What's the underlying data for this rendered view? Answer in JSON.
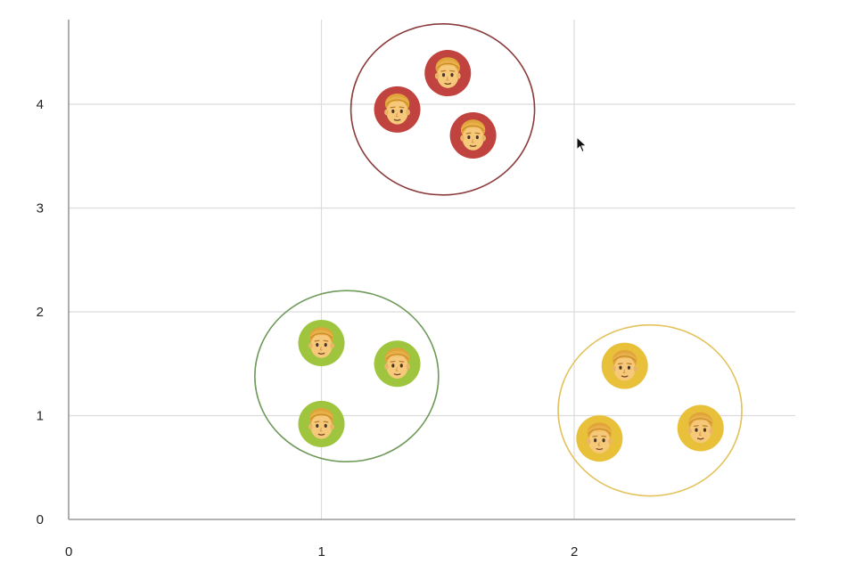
{
  "chart_data": {
    "type": "scatter",
    "title": "",
    "xlabel": "",
    "ylabel": "",
    "xlim": [
      0,
      2.9
    ],
    "ylim": [
      0,
      4.6
    ],
    "x_ticks": [
      "0",
      "1",
      "2"
    ],
    "y_ticks": [
      "0",
      "1",
      "2",
      "3",
      "4"
    ],
    "grid": true,
    "marker": "person-face-icon",
    "clusters": [
      {
        "color": "#c0433f",
        "ring_color": "#8a3a3a",
        "center": [
          1.48,
          3.95
        ],
        "radius": 0.73,
        "points": [
          {
            "x": 1.5,
            "y": 4.3
          },
          {
            "x": 1.3,
            "y": 3.95
          },
          {
            "x": 1.6,
            "y": 3.7
          }
        ]
      },
      {
        "color": "#9ec53d",
        "ring_color": "#6f9a5a",
        "center": [
          1.1,
          1.38
        ],
        "radius": 0.73,
        "points": [
          {
            "x": 1.0,
            "y": 1.7
          },
          {
            "x": 1.3,
            "y": 1.5
          },
          {
            "x": 1.0,
            "y": 0.92
          }
        ]
      },
      {
        "color": "#e8c03a",
        "ring_color": "#e3c25c",
        "center": [
          2.3,
          1.05
        ],
        "radius": 0.73,
        "points": [
          {
            "x": 2.2,
            "y": 1.48
          },
          {
            "x": 2.1,
            "y": 0.78
          },
          {
            "x": 2.5,
            "y": 0.88
          }
        ]
      }
    ]
  }
}
